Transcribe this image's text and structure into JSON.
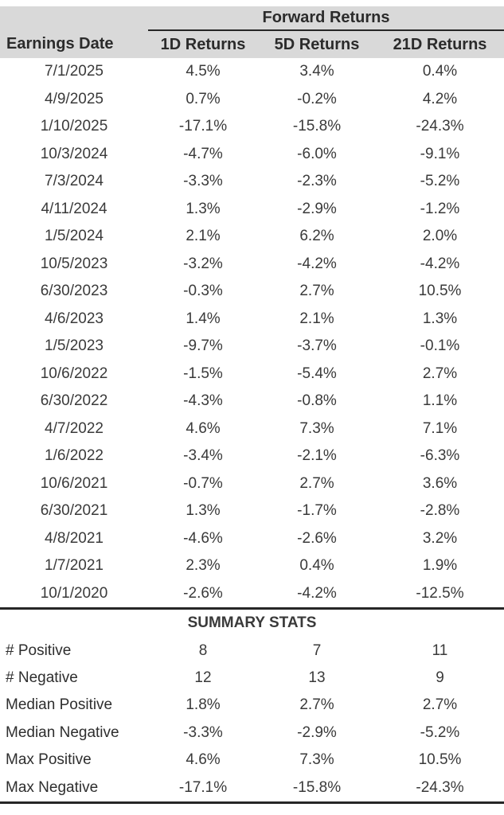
{
  "chart_data": {
    "type": "table",
    "title": "Forward Returns",
    "columns": [
      "Earnings Date",
      "1D Returns",
      "5D Returns",
      "21D Returns"
    ],
    "rows": [
      [
        "7/1/2025",
        "4.5%",
        "3.4%",
        "0.4%"
      ],
      [
        "4/9/2025",
        "0.7%",
        "-0.2%",
        "4.2%"
      ],
      [
        "1/10/2025",
        "-17.1%",
        "-15.8%",
        "-24.3%"
      ],
      [
        "10/3/2024",
        "-4.7%",
        "-6.0%",
        "-9.1%"
      ],
      [
        "7/3/2024",
        "-3.3%",
        "-2.3%",
        "-5.2%"
      ],
      [
        "4/11/2024",
        "1.3%",
        "-2.9%",
        "-1.2%"
      ],
      [
        "1/5/2024",
        "2.1%",
        "6.2%",
        "2.0%"
      ],
      [
        "10/5/2023",
        "-3.2%",
        "-4.2%",
        "-4.2%"
      ],
      [
        "6/30/2023",
        "-0.3%",
        "2.7%",
        "10.5%"
      ],
      [
        "4/6/2023",
        "1.4%",
        "2.1%",
        "1.3%"
      ],
      [
        "1/5/2023",
        "-9.7%",
        "-3.7%",
        "-0.1%"
      ],
      [
        "10/6/2022",
        "-1.5%",
        "-5.4%",
        "2.7%"
      ],
      [
        "6/30/2022",
        "-4.3%",
        "-0.8%",
        "1.1%"
      ],
      [
        "4/7/2022",
        "4.6%",
        "7.3%",
        "7.1%"
      ],
      [
        "1/6/2022",
        "-3.4%",
        "-2.1%",
        "-6.3%"
      ],
      [
        "10/6/2021",
        "-0.7%",
        "2.7%",
        "3.6%"
      ],
      [
        "6/30/2021",
        "1.3%",
        "-1.7%",
        "-2.8%"
      ],
      [
        "4/8/2021",
        "-4.6%",
        "-2.6%",
        "3.2%"
      ],
      [
        "1/7/2021",
        "2.3%",
        "0.4%",
        "1.9%"
      ],
      [
        "10/1/2020",
        "-2.6%",
        "-4.2%",
        "-12.5%"
      ]
    ],
    "summary_title": "SUMMARY STATS",
    "summary_rows": [
      [
        "# Positive",
        "8",
        "7",
        "11"
      ],
      [
        "# Negative",
        "12",
        "13",
        "9"
      ],
      [
        "Median Positive",
        "1.8%",
        "2.7%",
        "2.7%"
      ],
      [
        "Median Negative",
        "-3.3%",
        "-2.9%",
        "-5.2%"
      ],
      [
        "Max Positive",
        "4.6%",
        "7.3%",
        "10.5%"
      ],
      [
        "Max Negative",
        "-17.1%",
        "-15.8%",
        "-24.3%"
      ]
    ],
    "layout": {
      "legend": "none",
      "grid": "off"
    },
    "colors": {
      "header_bg": "#d9d9d9",
      "date_link": "#3a72d8",
      "text": "#3a3a3a",
      "rule": "#262626"
    }
  }
}
